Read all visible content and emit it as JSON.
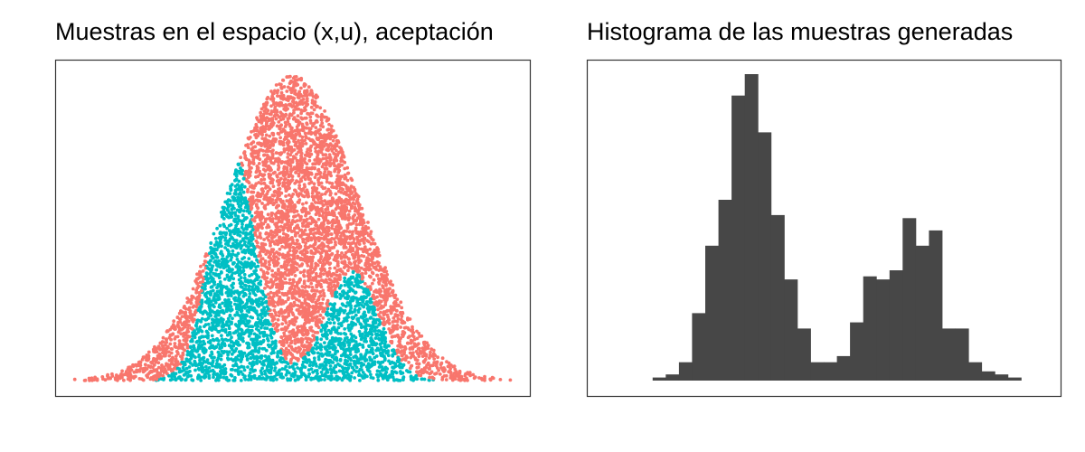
{
  "colors": {
    "rejected": "#F8766D",
    "accepted": "#00BFC4",
    "histogram_fill": "#474747",
    "frame": "#333333",
    "background": "#ffffff"
  },
  "chart_data": [
    {
      "type": "scatter",
      "title": "Muestras en el espacio (x,u), aceptación",
      "xlabel": "",
      "ylabel": "",
      "grid": false,
      "xlim": [
        -3.6,
        3.6
      ],
      "ylim": [
        0,
        1.0
      ],
      "envelope": {
        "type": "gaussian",
        "mean": 0.0,
        "sd": 1.0,
        "peak": 0.95
      },
      "target": {
        "type": "mixture",
        "components": [
          {
            "mean": -0.9,
            "sd": 0.35,
            "height": 0.71
          },
          {
            "mean": 0.9,
            "sd": 0.4,
            "height": 0.34
          }
        ]
      },
      "n_points": 6500,
      "series": [
        {
          "color": "#F8766D"
        },
        {
          "color": "#00BFC4"
        }
      ]
    },
    {
      "type": "bar",
      "title": "Histograma de las muestras generadas",
      "xlabel": "",
      "ylabel": "",
      "grid": false,
      "x": [
        -2.4,
        -2.2,
        -2.0,
        -1.8,
        -1.6,
        -1.4,
        -1.2,
        -1.0,
        -0.8,
        -0.6,
        -0.4,
        -0.2,
        0.0,
        0.2,
        0.4,
        0.6,
        0.8,
        1.0,
        1.2,
        1.4,
        1.6,
        1.8,
        2.0,
        2.2,
        2.4,
        2.6,
        2.8,
        3.0
      ],
      "values": [
        1,
        2,
        6,
        22,
        44,
        59,
        93,
        100,
        81,
        54,
        33,
        17,
        6,
        6,
        8,
        19,
        34,
        33,
        36,
        53,
        44,
        49,
        17,
        17,
        6,
        3,
        2,
        1
      ],
      "ylim": [
        0,
        105
      ]
    }
  ]
}
